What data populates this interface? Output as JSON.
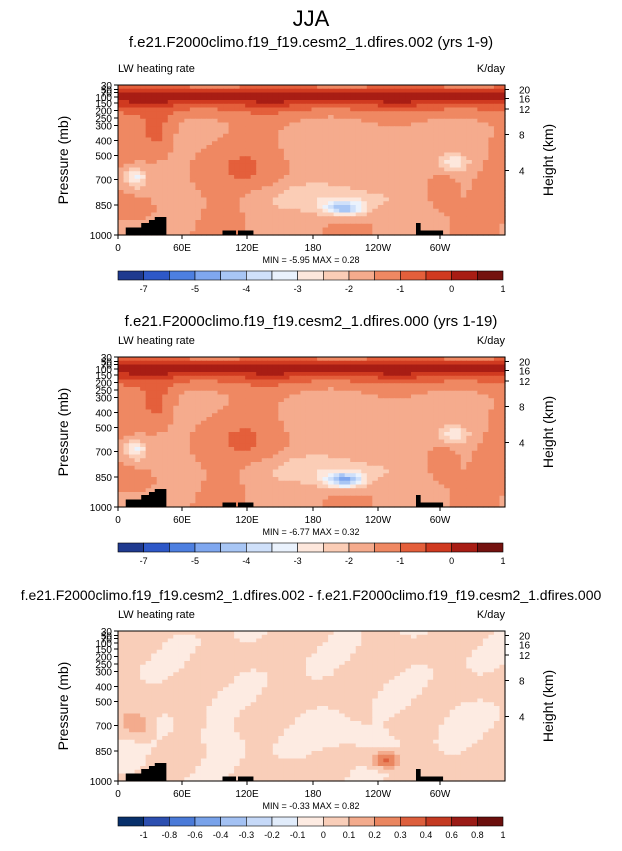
{
  "figure_title": "JJA",
  "colors": {
    "scale11": [
      "#053061",
      "#2166ac",
      "#4393c3",
      "#92c5de",
      "#d1e5f0",
      "#f7f7f7",
      "#fddbc7",
      "#f4a582",
      "#d6604d",
      "#b2182b",
      "#67001f"
    ],
    "panel1": [
      "#1f3a8f",
      "#2e58c8",
      "#4d7fe0",
      "#7fa7ef",
      "#a8c6f5",
      "#cfe0fa",
      "#eaf2fd",
      "#fde7dc",
      "#fbcdb6",
      "#f5ab8d",
      "#ef8862",
      "#e45f3b",
      "#d03a20",
      "#a81d14",
      "#74120f"
    ],
    "panel3": [
      "#08306b",
      "#2c4fb0",
      "#4a7ad8",
      "#78a2ea",
      "#a3c1f3",
      "#c6d9f8",
      "#e1ecfb",
      "#fdebe2",
      "#f9ceb9",
      "#f3ab8d",
      "#ea8660",
      "#dd5f3d",
      "#c43a22",
      "#9a1b16",
      "#6b0f0d"
    ]
  },
  "chart_data": [
    {
      "type": "heatmap",
      "title": "f.e21.F2000climo.f19_f19.cesm2_1.dfires.002 (yrs 1-9)",
      "left_label": "LW heating rate",
      "right_label": "K/day",
      "ylabel": "Pressure (mb)",
      "ylabel_right": "Height (km)",
      "x_ticks": [
        "0",
        "60E",
        "120E",
        "180",
        "120W",
        "60W"
      ],
      "y_ticks": [
        "30",
        "50",
        "70",
        "100",
        "150",
        "200",
        "250",
        "300",
        "400",
        "500",
        "700",
        "850",
        "1000"
      ],
      "height_ticks": [
        "20",
        "16",
        "12",
        "8",
        "4"
      ],
      "stats": "MIN = -5.95 MAX = 0.28",
      "colorbar_labels": [
        "-7",
        "-5",
        "-4",
        "-3",
        "-2",
        "-1",
        "0",
        "1"
      ],
      "min": -5.95,
      "max": 0.28
    },
    {
      "type": "heatmap",
      "title": "f.e21.F2000climo.f19_f19.cesm2_1.dfires.000 (yrs 1-19)",
      "left_label": "LW heating rate",
      "right_label": "K/day",
      "ylabel": "Pressure (mb)",
      "ylabel_right": "Height (km)",
      "x_ticks": [
        "0",
        "60E",
        "120E",
        "180",
        "120W",
        "60W"
      ],
      "y_ticks": [
        "30",
        "50",
        "70",
        "100",
        "150",
        "200",
        "250",
        "300",
        "400",
        "500",
        "700",
        "850",
        "1000"
      ],
      "height_ticks": [
        "20",
        "16",
        "12",
        "8",
        "4"
      ],
      "stats": "MIN = -6.77 MAX = 0.32",
      "colorbar_labels": [
        "-7",
        "-5",
        "-4",
        "-3",
        "-2",
        "-1",
        "0",
        "1"
      ],
      "min": -6.77,
      "max": 0.32
    },
    {
      "type": "heatmap",
      "title": "f.e21.F2000climo.f19_f19.cesm2_1.dfires.002 - f.e21.F2000climo.f19_f19.cesm2_1.dfires.000",
      "left_label": "LW heating rate",
      "right_label": "K/day",
      "ylabel": "Pressure (mb)",
      "ylabel_right": "Height (km)",
      "x_ticks": [
        "0",
        "60E",
        "120E",
        "180",
        "120W",
        "60W"
      ],
      "y_ticks": [
        "30",
        "50",
        "70",
        "100",
        "150",
        "200",
        "250",
        "300",
        "400",
        "500",
        "700",
        "850",
        "1000"
      ],
      "height_ticks": [
        "20",
        "16",
        "12",
        "8",
        "4"
      ],
      "stats": "MIN = -0.33 MAX = 0.82",
      "colorbar_labels": [
        "-1",
        "-0.8",
        "-0.6",
        "-0.4",
        "-0.3",
        "-0.2",
        "-0.1",
        "0",
        "0.1",
        "0.2",
        "0.3",
        "0.4",
        "0.6",
        "0.8",
        "1"
      ],
      "min": -0.33,
      "max": 0.82
    }
  ]
}
